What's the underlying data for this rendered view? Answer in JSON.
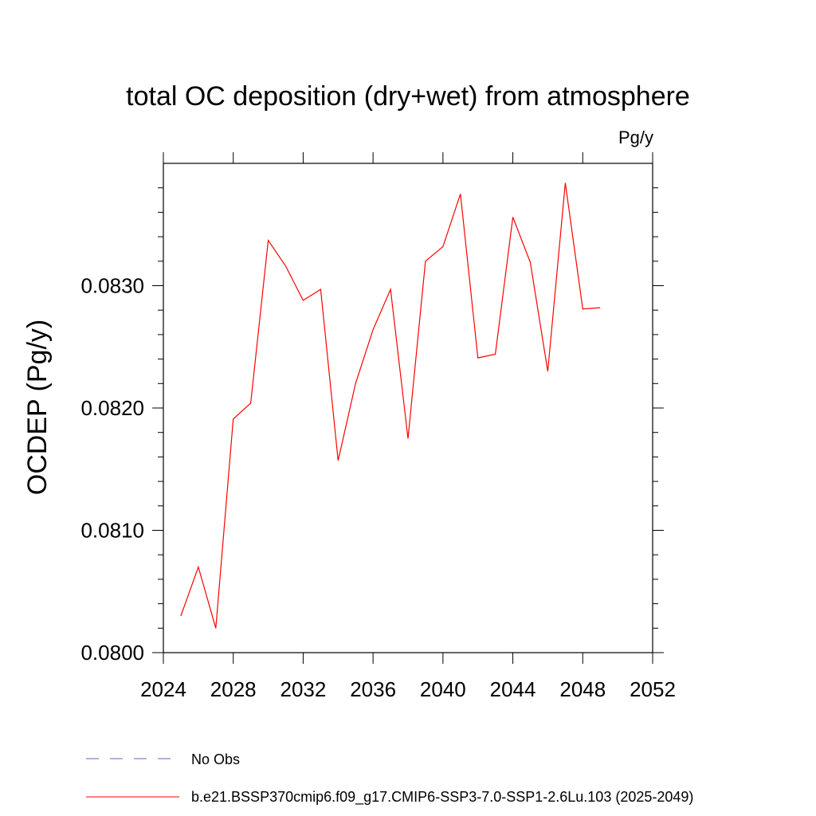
{
  "chart_data": {
    "type": "line",
    "title": "total OC deposition (dry+wet) from atmosphere",
    "units": "Pg/y",
    "xlabel": "",
    "ylabel": "OCDEP  (Pg/y)",
    "xlim": [
      2024,
      2052
    ],
    "ylim": [
      0.08,
      0.084
    ],
    "xticks": [
      2024,
      2028,
      2032,
      2036,
      2040,
      2044,
      2048,
      2052
    ],
    "xtick_labels": [
      "2024",
      "2028",
      "2032",
      "2036",
      "2040",
      "2044",
      "2048",
      "2052"
    ],
    "yticks": [
      0.08,
      0.081,
      0.082,
      0.083
    ],
    "ytick_labels": [
      "0.0800",
      "0.0810",
      "0.0820",
      "0.0830"
    ],
    "series": [
      {
        "name": "b.e21.BSSP370cmip6.f09_g17.CMIP6-SSP3-7.0-SSP1-2.6Lu.103 (2025-2049)",
        "color": "#ff0000",
        "style": "solid",
        "x": [
          2025,
          2026,
          2027,
          2028,
          2029,
          2030,
          2031,
          2032,
          2033,
          2034,
          2035,
          2036,
          2037,
          2038,
          2039,
          2040,
          2041,
          2042,
          2043,
          2044,
          2045,
          2046,
          2047,
          2048,
          2049
        ],
        "y": [
          0.0803,
          0.0807,
          0.0802,
          0.08191,
          0.08204,
          0.08337,
          0.08316,
          0.08288,
          0.08297,
          0.08157,
          0.0822,
          0.08264,
          0.08297,
          0.08175,
          0.0832,
          0.08332,
          0.08375,
          0.08241,
          0.08244,
          0.08356,
          0.08319,
          0.0823,
          0.08384,
          0.08281,
          0.08282
        ]
      }
    ],
    "legend": [
      {
        "label": "No Obs",
        "color": "#6666bb",
        "style": "dashed"
      },
      {
        "label": "b.e21.BSSP370cmip6.f09_g17.CMIP6-SSP3-7.0-SSP1-2.6Lu.103 (2025-2049)",
        "color": "#ff0000",
        "style": "solid"
      }
    ],
    "legend_position": "bottom"
  }
}
